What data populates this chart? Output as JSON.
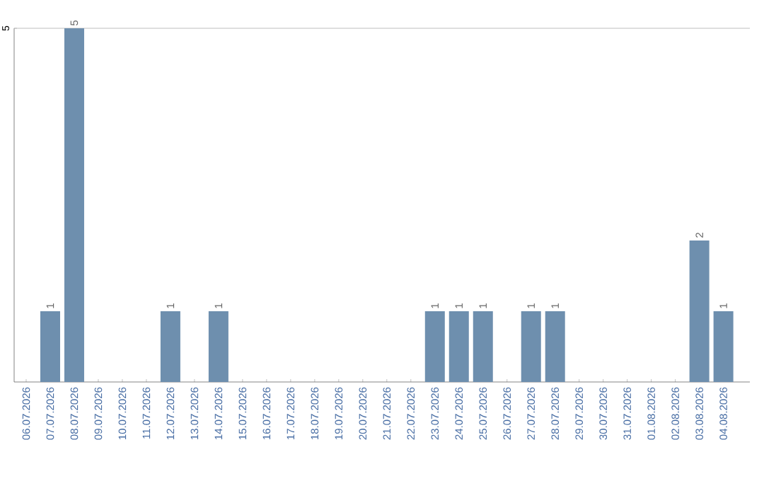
{
  "chart_data": {
    "type": "bar",
    "categories": [
      "06.07.2026",
      "07.07.2026",
      "08.07.2026",
      "09.07.2026",
      "10.07.2026",
      "11.07.2026",
      "12.07.2026",
      "13.07.2026",
      "14.07.2026",
      "15.07.2026",
      "16.07.2026",
      "17.07.2026",
      "18.07.2026",
      "19.07.2026",
      "20.07.2026",
      "21.07.2026",
      "22.07.2026",
      "23.07.2026",
      "24.07.2026",
      "25.07.2026",
      "26.07.2026",
      "27.07.2026",
      "28.07.2026",
      "29.07.2026",
      "30.07.2026",
      "31.07.2026",
      "01.08.2026",
      "02.08.2026",
      "03.08.2026",
      "04.08.2026"
    ],
    "values": [
      0,
      1,
      5,
      0,
      0,
      0,
      1,
      0,
      1,
      0,
      0,
      0,
      0,
      0,
      0,
      0,
      0,
      1,
      1,
      1,
      0,
      1,
      1,
      0,
      0,
      0,
      0,
      0,
      2,
      1
    ],
    "value_labels": [
      null,
      "1",
      "5",
      null,
      null,
      null,
      "1",
      null,
      "1",
      null,
      null,
      null,
      null,
      null,
      null,
      null,
      null,
      "1",
      "1",
      "1",
      null,
      "1",
      "1",
      null,
      null,
      null,
      null,
      null,
      "2",
      "1"
    ],
    "color": "#6e8fae",
    "ylim": [
      0,
      5
    ],
    "yticks": [
      5
    ],
    "grid": "y"
  }
}
